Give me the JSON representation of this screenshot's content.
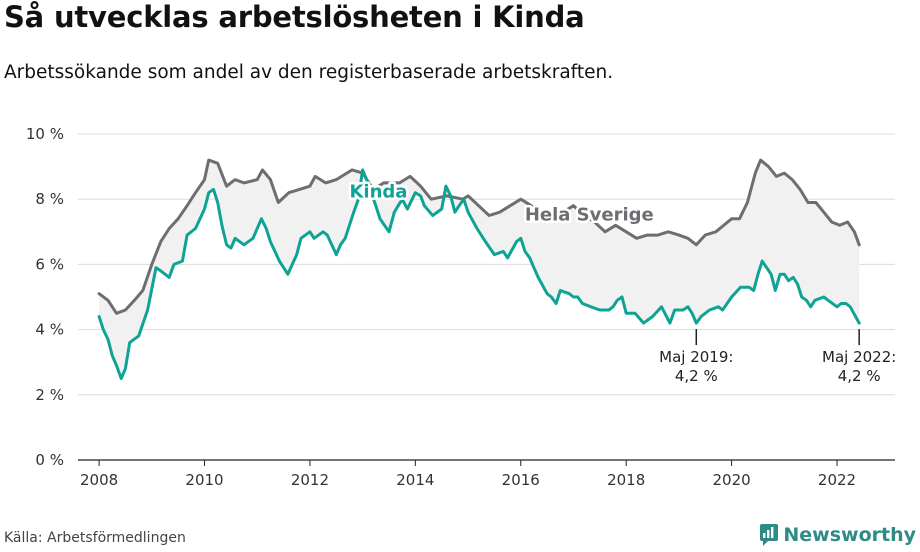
{
  "title": "Så utvecklas arbetslösheten i Kinda",
  "subtitle": "Arbetssökande som andel av den registerbaserade arbetskraften.",
  "source": "Källa: Arbetsförmedlingen",
  "brand": "Newsworthy",
  "colors": {
    "kinda": "#0ea394",
    "sverige": "#6e6e72",
    "band": "#f1f1f1",
    "grid": "#dcdcdc",
    "brand": "#2e8b86"
  },
  "chart_data": {
    "type": "line",
    "ylabel": "",
    "xlabel": "",
    "ylim": [
      0,
      10
    ],
    "xlim": [
      2007.6,
      2023.1
    ],
    "yticks": [
      0,
      2,
      4,
      6,
      8,
      10
    ],
    "ytick_labels": [
      "0 %",
      "2 %",
      "4 %",
      "6 %",
      "8 %",
      "10 %"
    ],
    "xticks": [
      2008,
      2010,
      2012,
      2014,
      2016,
      2018,
      2020,
      2022
    ],
    "xtick_labels": [
      "2008",
      "2010",
      "2012",
      "2014",
      "2016",
      "2018",
      "2020",
      "2022"
    ],
    "series": [
      {
        "name": "Hela Sverige",
        "label": "Hela Sverige",
        "points": [
          [
            2008.0,
            5.1
          ],
          [
            2008.17,
            4.9
          ],
          [
            2008.33,
            4.5
          ],
          [
            2008.5,
            4.6
          ],
          [
            2008.67,
            4.9
          ],
          [
            2008.83,
            5.2
          ],
          [
            2009.0,
            6.0
          ],
          [
            2009.17,
            6.7
          ],
          [
            2009.33,
            7.1
          ],
          [
            2009.5,
            7.4
          ],
          [
            2009.67,
            7.8
          ],
          [
            2009.83,
            8.2
          ],
          [
            2010.0,
            8.6
          ],
          [
            2010.08,
            9.2
          ],
          [
            2010.25,
            9.1
          ],
          [
            2010.42,
            8.4
          ],
          [
            2010.58,
            8.6
          ],
          [
            2010.75,
            8.5
          ],
          [
            2011.0,
            8.6
          ],
          [
            2011.1,
            8.9
          ],
          [
            2011.25,
            8.6
          ],
          [
            2011.4,
            7.9
          ],
          [
            2011.6,
            8.2
          ],
          [
            2011.8,
            8.3
          ],
          [
            2012.0,
            8.4
          ],
          [
            2012.1,
            8.7
          ],
          [
            2012.3,
            8.5
          ],
          [
            2012.5,
            8.6
          ],
          [
            2012.8,
            8.9
          ],
          [
            2013.0,
            8.8
          ],
          [
            2013.2,
            8.3
          ],
          [
            2013.4,
            8.5
          ],
          [
            2013.7,
            8.5
          ],
          [
            2013.9,
            8.7
          ],
          [
            2014.1,
            8.4
          ],
          [
            2014.3,
            8.0
          ],
          [
            2014.6,
            8.1
          ],
          [
            2014.9,
            8.0
          ],
          [
            2015.0,
            8.1
          ],
          [
            2015.2,
            7.8
          ],
          [
            2015.4,
            7.5
          ],
          [
            2015.6,
            7.6
          ],
          [
            2015.8,
            7.8
          ],
          [
            2016.0,
            8.0
          ],
          [
            2016.2,
            7.8
          ],
          [
            2016.4,
            7.5
          ],
          [
            2016.6,
            7.4
          ],
          [
            2016.8,
            7.6
          ],
          [
            2017.0,
            7.8
          ],
          [
            2017.2,
            7.5
          ],
          [
            2017.4,
            7.3
          ],
          [
            2017.6,
            7.0
          ],
          [
            2017.8,
            7.2
          ],
          [
            2018.0,
            7.0
          ],
          [
            2018.2,
            6.8
          ],
          [
            2018.4,
            6.9
          ],
          [
            2018.6,
            6.9
          ],
          [
            2018.8,
            7.0
          ],
          [
            2019.0,
            6.9
          ],
          [
            2019.17,
            6.8
          ],
          [
            2019.33,
            6.6
          ],
          [
            2019.5,
            6.9
          ],
          [
            2019.7,
            7.0
          ],
          [
            2019.85,
            7.2
          ],
          [
            2020.0,
            7.4
          ],
          [
            2020.15,
            7.4
          ],
          [
            2020.3,
            7.9
          ],
          [
            2020.45,
            8.8
          ],
          [
            2020.55,
            9.2
          ],
          [
            2020.7,
            9.0
          ],
          [
            2020.85,
            8.7
          ],
          [
            2021.0,
            8.8
          ],
          [
            2021.15,
            8.6
          ],
          [
            2021.3,
            8.3
          ],
          [
            2021.45,
            7.9
          ],
          [
            2021.6,
            7.9
          ],
          [
            2021.75,
            7.6
          ],
          [
            2021.9,
            7.3
          ],
          [
            2022.05,
            7.2
          ],
          [
            2022.2,
            7.3
          ],
          [
            2022.33,
            7.0
          ],
          [
            2022.42,
            6.6
          ]
        ]
      },
      {
        "name": "Kinda",
        "label": "Kinda",
        "points": [
          [
            2008.0,
            4.4
          ],
          [
            2008.08,
            4.0
          ],
          [
            2008.17,
            3.7
          ],
          [
            2008.25,
            3.2
          ],
          [
            2008.33,
            2.9
          ],
          [
            2008.42,
            2.5
          ],
          [
            2008.5,
            2.8
          ],
          [
            2008.58,
            3.6
          ],
          [
            2008.75,
            3.8
          ],
          [
            2008.92,
            4.6
          ],
          [
            2009.08,
            5.9
          ],
          [
            2009.17,
            5.8
          ],
          [
            2009.33,
            5.6
          ],
          [
            2009.42,
            6.0
          ],
          [
            2009.58,
            6.1
          ],
          [
            2009.67,
            6.9
          ],
          [
            2009.83,
            7.1
          ],
          [
            2010.0,
            7.7
          ],
          [
            2010.08,
            8.2
          ],
          [
            2010.17,
            8.3
          ],
          [
            2010.25,
            7.9
          ],
          [
            2010.33,
            7.2
          ],
          [
            2010.42,
            6.6
          ],
          [
            2010.5,
            6.5
          ],
          [
            2010.58,
            6.8
          ],
          [
            2010.75,
            6.6
          ],
          [
            2010.92,
            6.8
          ],
          [
            2011.08,
            7.4
          ],
          [
            2011.17,
            7.1
          ],
          [
            2011.25,
            6.7
          ],
          [
            2011.42,
            6.1
          ],
          [
            2011.58,
            5.7
          ],
          [
            2011.75,
            6.3
          ],
          [
            2011.83,
            6.8
          ],
          [
            2012.0,
            7.0
          ],
          [
            2012.08,
            6.8
          ],
          [
            2012.25,
            7.0
          ],
          [
            2012.33,
            6.9
          ],
          [
            2012.5,
            6.3
          ],
          [
            2012.58,
            6.6
          ],
          [
            2012.67,
            6.8
          ],
          [
            2012.83,
            7.6
          ],
          [
            2012.92,
            8.0
          ],
          [
            2013.0,
            8.9
          ],
          [
            2013.1,
            8.5
          ],
          [
            2013.25,
            7.8
          ],
          [
            2013.33,
            7.4
          ],
          [
            2013.5,
            7.0
          ],
          [
            2013.6,
            7.6
          ],
          [
            2013.75,
            8.0
          ],
          [
            2013.85,
            7.7
          ],
          [
            2014.0,
            8.2
          ],
          [
            2014.1,
            8.1
          ],
          [
            2014.17,
            7.8
          ],
          [
            2014.33,
            7.5
          ],
          [
            2014.5,
            7.7
          ],
          [
            2014.58,
            8.4
          ],
          [
            2014.67,
            8.1
          ],
          [
            2014.75,
            7.6
          ],
          [
            2014.83,
            7.8
          ],
          [
            2014.92,
            8.0
          ],
          [
            2015.0,
            7.6
          ],
          [
            2015.17,
            7.1
          ],
          [
            2015.33,
            6.7
          ],
          [
            2015.5,
            6.3
          ],
          [
            2015.67,
            6.4
          ],
          [
            2015.75,
            6.2
          ],
          [
            2015.92,
            6.7
          ],
          [
            2016.0,
            6.8
          ],
          [
            2016.08,
            6.4
          ],
          [
            2016.17,
            6.2
          ],
          [
            2016.25,
            5.9
          ],
          [
            2016.33,
            5.6
          ],
          [
            2016.5,
            5.1
          ],
          [
            2016.58,
            5.0
          ],
          [
            2016.67,
            4.8
          ],
          [
            2016.75,
            5.2
          ],
          [
            2016.92,
            5.1
          ],
          [
            2017.0,
            5.0
          ],
          [
            2017.08,
            5.0
          ],
          [
            2017.17,
            4.8
          ],
          [
            2017.33,
            4.7
          ],
          [
            2017.5,
            4.6
          ],
          [
            2017.67,
            4.6
          ],
          [
            2017.75,
            4.7
          ],
          [
            2017.83,
            4.9
          ],
          [
            2017.92,
            5.0
          ],
          [
            2018.0,
            4.5
          ],
          [
            2018.17,
            4.5
          ],
          [
            2018.33,
            4.2
          ],
          [
            2018.5,
            4.4
          ],
          [
            2018.67,
            4.7
          ],
          [
            2018.83,
            4.2
          ],
          [
            2018.92,
            4.6
          ],
          [
            2019.08,
            4.6
          ],
          [
            2019.17,
            4.7
          ],
          [
            2019.25,
            4.5
          ],
          [
            2019.33,
            4.2
          ],
          [
            2019.42,
            4.4
          ],
          [
            2019.58,
            4.6
          ],
          [
            2019.75,
            4.7
          ],
          [
            2019.83,
            4.6
          ],
          [
            2020.0,
            5.0
          ],
          [
            2020.17,
            5.3
          ],
          [
            2020.33,
            5.3
          ],
          [
            2020.42,
            5.2
          ],
          [
            2020.5,
            5.7
          ],
          [
            2020.58,
            6.1
          ],
          [
            2020.75,
            5.7
          ],
          [
            2020.83,
            5.2
          ],
          [
            2020.92,
            5.7
          ],
          [
            2021.0,
            5.7
          ],
          [
            2021.08,
            5.5
          ],
          [
            2021.17,
            5.6
          ],
          [
            2021.25,
            5.4
          ],
          [
            2021.33,
            5.0
          ],
          [
            2021.42,
            4.9
          ],
          [
            2021.5,
            4.7
          ],
          [
            2021.58,
            4.9
          ],
          [
            2021.75,
            5.0
          ],
          [
            2021.83,
            4.9
          ],
          [
            2022.0,
            4.7
          ],
          [
            2022.08,
            4.8
          ],
          [
            2022.17,
            4.8
          ],
          [
            2022.25,
            4.7
          ],
          [
            2022.42,
            4.2
          ]
        ]
      }
    ],
    "annotations": [
      {
        "x": 2019.33,
        "y": 4.2,
        "text_line1": "Maj 2019:",
        "text_line2": "4,2 %"
      },
      {
        "x": 2022.42,
        "y": 4.2,
        "text_line1": "Maj 2022:",
        "text_line2": "4,2 %"
      }
    ]
  }
}
